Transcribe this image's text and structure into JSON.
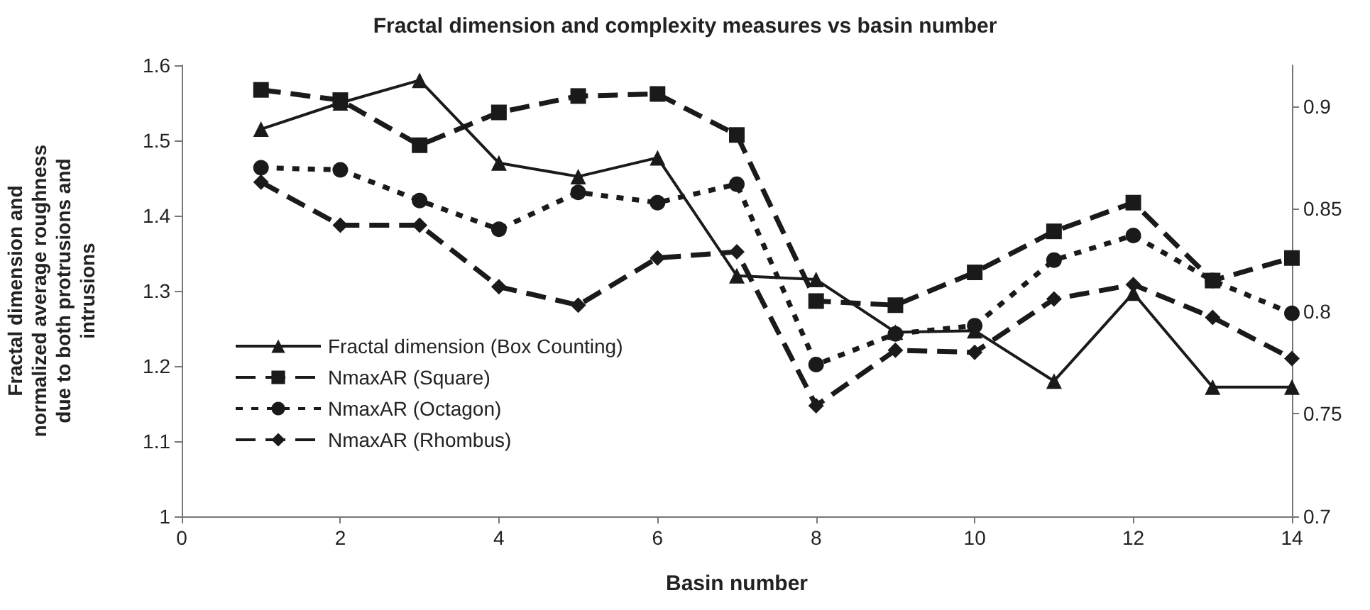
{
  "chart_data": {
    "type": "line",
    "title": "Fractal dimension and complexity measures vs basin number",
    "xlabel": "Basin number",
    "ylabel": "Fractal dimension and normalized average roughness due to both protrusions and intrusions",
    "x": [
      1,
      2,
      3,
      4,
      5,
      6,
      7,
      8,
      9,
      10,
      11,
      12,
      13,
      14
    ],
    "xlim": [
      0,
      14
    ],
    "xticks": [
      0,
      2,
      4,
      6,
      8,
      10,
      12,
      14
    ],
    "ylim": [
      1,
      1.6
    ],
    "yticks": [
      1,
      1.1,
      1.2,
      1.3,
      1.4,
      1.5,
      1.6
    ],
    "y2lim": [
      0.7,
      0.92
    ],
    "y2ticks": [
      0.7,
      0.75,
      0.8,
      0.85,
      0.9
    ],
    "grid": false,
    "legend": "bottom left",
    "series": [
      {
        "name": "Fractal dimension (Box Counting)",
        "color": "#1a1a1a",
        "marker": "triangle",
        "line_style": "solid",
        "values": [
          1.515,
          1.55,
          1.58,
          1.47,
          1.452,
          1.477,
          1.32,
          1.315,
          1.245,
          1.247,
          1.18,
          1.297,
          1.172,
          1.172
        ]
      },
      {
        "name": "NmaxAR (Square)",
        "color": "#1a1a1a",
        "marker": "square",
        "line_style": "dashed",
        "axis": "y2",
        "values": [
          0.908,
          0.903,
          0.881,
          0.897,
          0.905,
          0.906,
          0.886,
          0.805,
          0.803,
          0.819,
          0.839,
          0.853,
          0.815,
          0.826
        ]
      },
      {
        "name": "NmaxAR (Octagon)",
        "color": "#1a1a1a",
        "marker": "circle",
        "line_style": "dotted",
        "axis": "y2",
        "values": [
          0.87,
          0.869,
          0.854,
          0.84,
          0.858,
          0.853,
          0.862,
          0.774,
          0.789,
          0.793,
          0.825,
          0.837,
          0.815,
          0.799
        ]
      },
      {
        "name": "NmaxAR (Rhombus)",
        "color": "#1a1a1a",
        "marker": "diamond",
        "line_style": "dashed",
        "axis": "y2",
        "values": [
          0.863,
          0.842,
          0.842,
          0.812,
          0.803,
          0.826,
          0.829,
          0.754,
          0.781,
          0.78,
          0.806,
          0.813,
          0.797,
          0.777
        ]
      }
    ]
  }
}
